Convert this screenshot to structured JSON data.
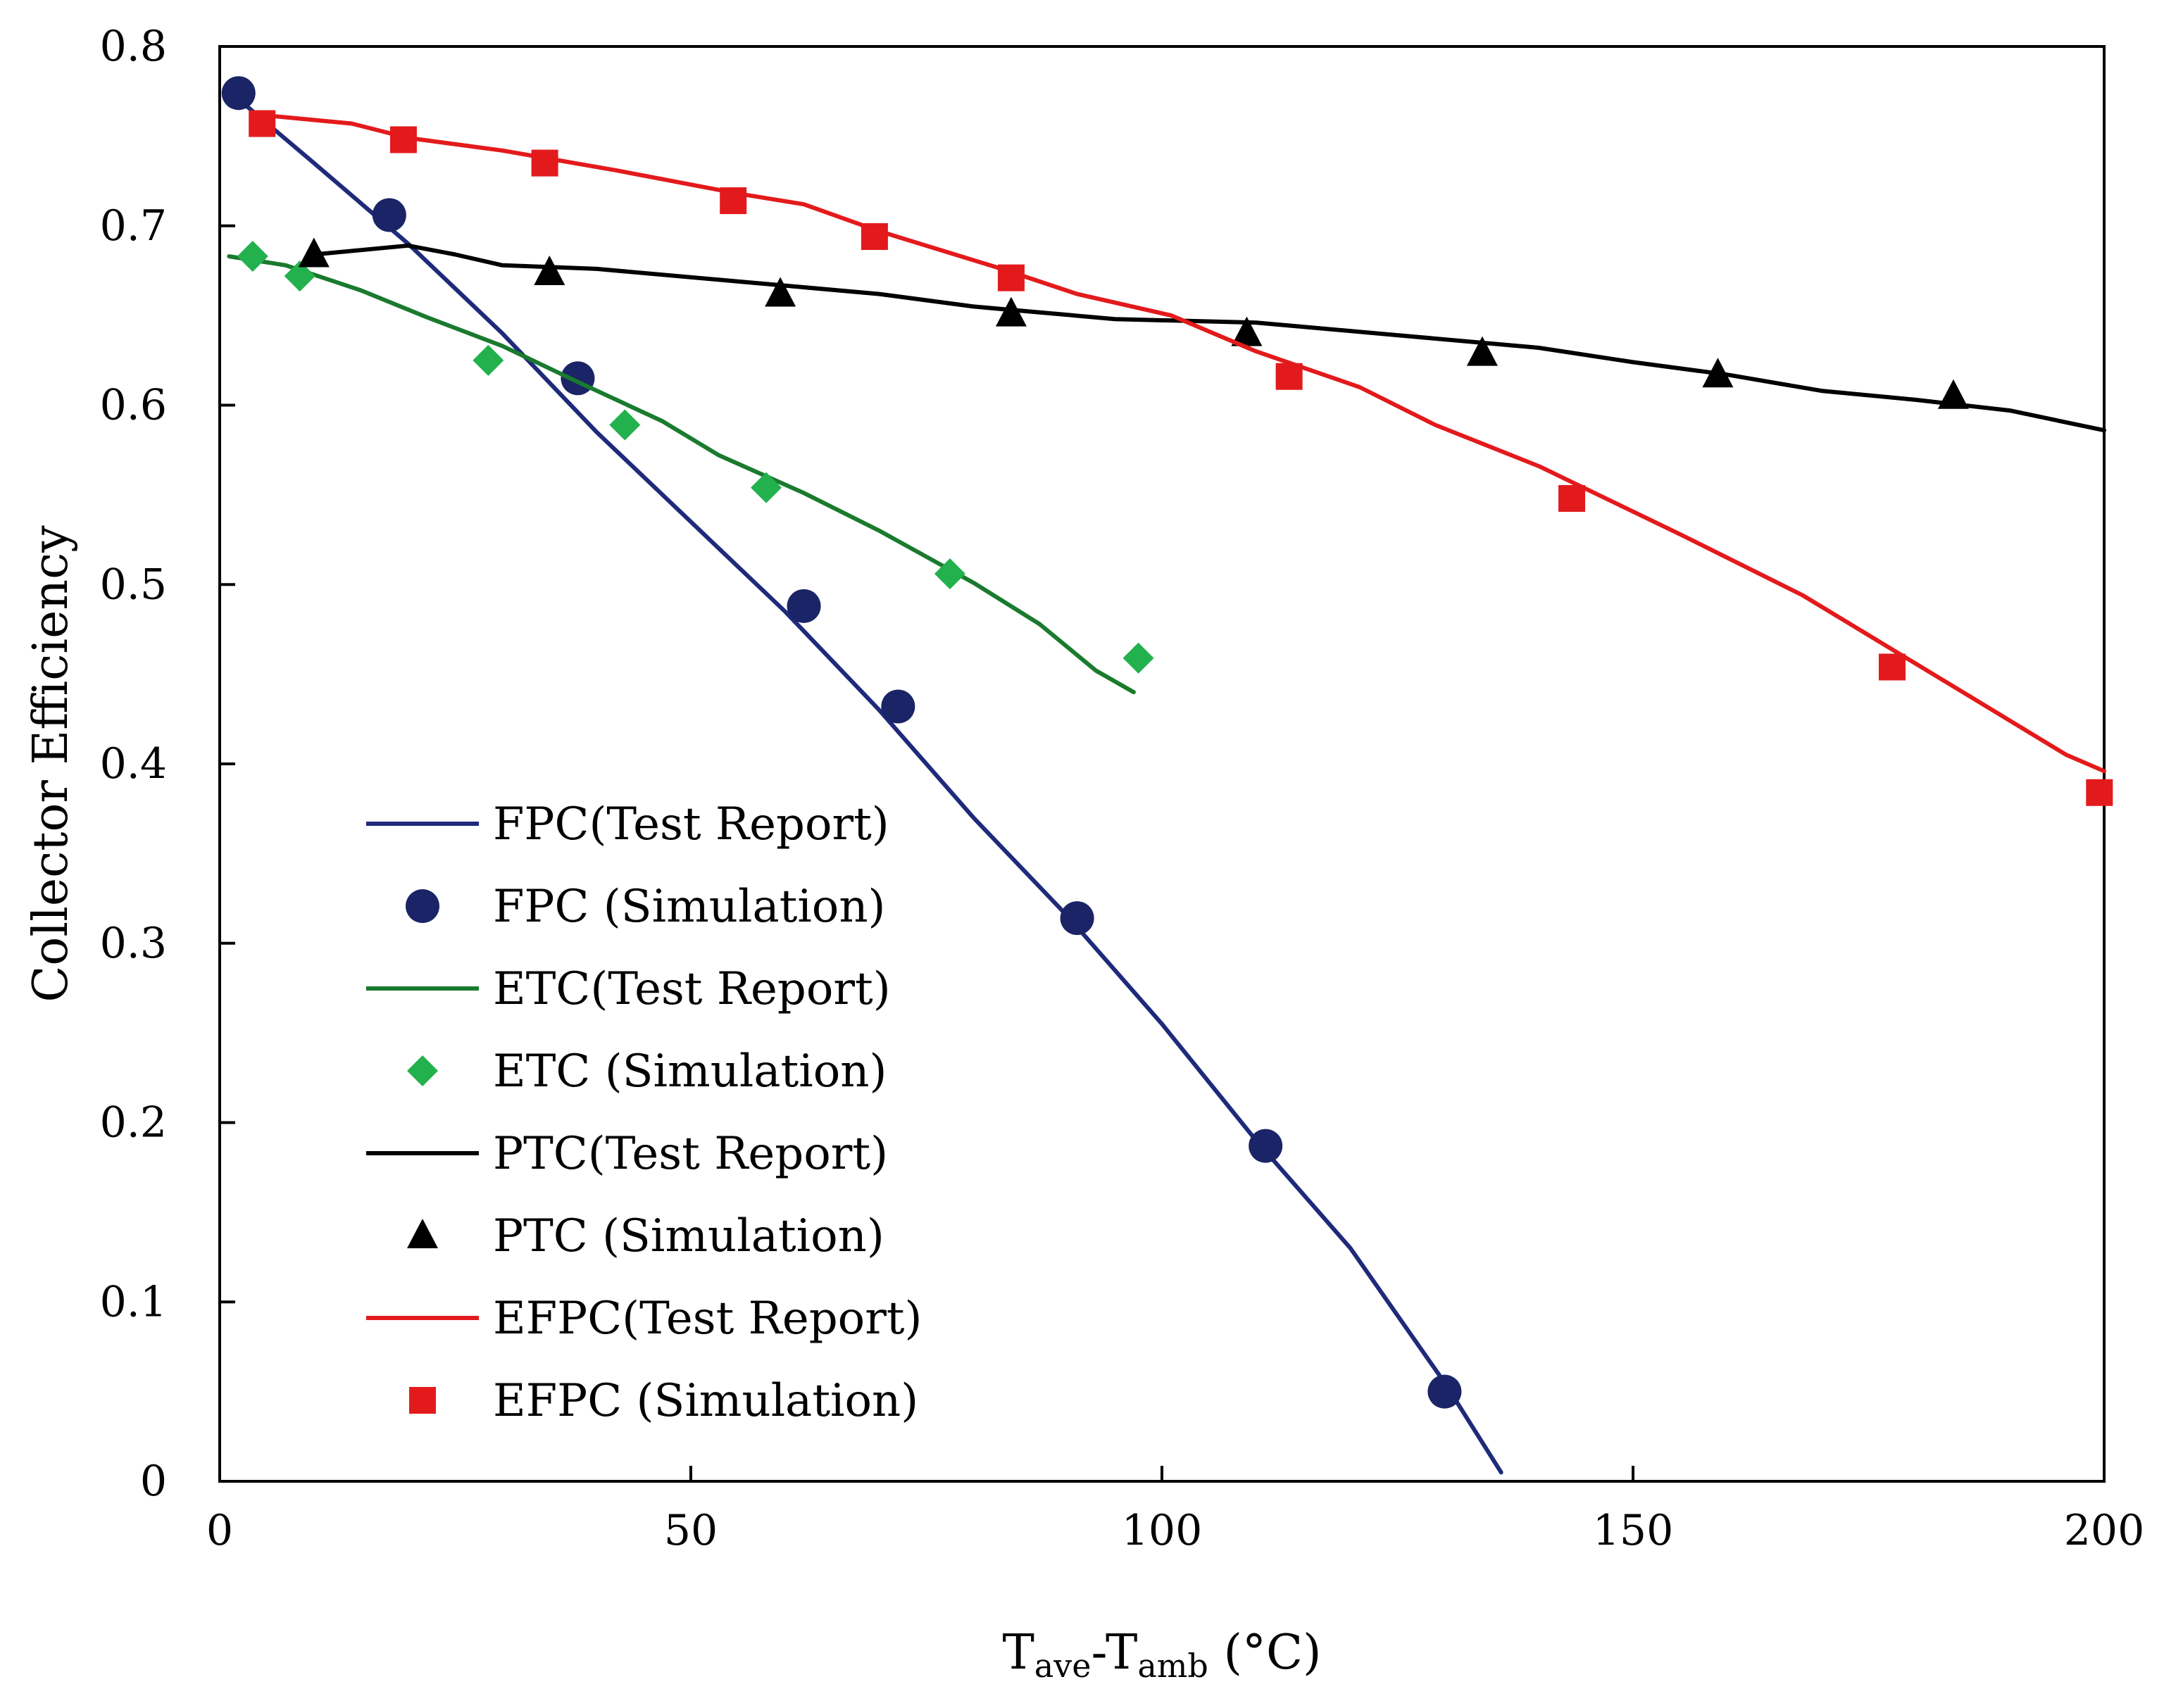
{
  "chart_data": {
    "type": "line",
    "title": "",
    "xlabel": {
      "main": "T",
      "sub1": "ave",
      "mid": "-T",
      "sub2": "amb",
      "unit": " (°C)"
    },
    "ylabel": "Collector Efficiency",
    "xlim": [
      0,
      200
    ],
    "ylim": [
      0,
      0.8
    ],
    "x_ticks": [
      0,
      50,
      100,
      150,
      200
    ],
    "x_tick_labels": [
      "0",
      "50",
      "100",
      "150",
      "200"
    ],
    "y_ticks": [
      0,
      0.1,
      0.2,
      0.3,
      0.4,
      0.5,
      0.6,
      0.7,
      0.8
    ],
    "y_tick_labels": [
      "0",
      "0.1",
      "0.2",
      "0.3",
      "0.4",
      "0.5",
      "0.6",
      "0.7",
      "0.8"
    ],
    "grid": false,
    "legend_position": "bottom-left",
    "series": [
      {
        "name": "FPC(Test Report)",
        "kind": "line",
        "color": "#1f2a7a",
        "x": [
          1,
          10,
          20,
          30,
          40,
          50,
          60,
          70,
          80,
          90,
          100,
          110,
          120,
          130,
          136
        ],
        "y": [
          0.775,
          0.735,
          0.69,
          0.64,
          0.585,
          0.535,
          0.485,
          0.43,
          0.37,
          0.315,
          0.255,
          0.19,
          0.13,
          0.055,
          0.005
        ]
      },
      {
        "name": "FPC (Simulation)",
        "kind": "marker",
        "marker": "circle",
        "color": "#1a2466",
        "x": [
          2,
          18,
          38,
          62,
          72,
          91,
          111,
          130
        ],
        "y": [
          0.774,
          0.706,
          0.615,
          0.488,
          0.432,
          0.314,
          0.187,
          0.05
        ]
      },
      {
        "name": "ETC(Test Report)",
        "kind": "line",
        "color": "#1a7a2e",
        "x": [
          1,
          7,
          15,
          22,
          30,
          38,
          47,
          53,
          62,
          70,
          80,
          87,
          93,
          97
        ],
        "y": [
          0.683,
          0.678,
          0.664,
          0.649,
          0.633,
          0.613,
          0.591,
          0.572,
          0.551,
          0.53,
          0.501,
          0.478,
          0.452,
          0.44
        ]
      },
      {
        "name": "ETC (Simulation)",
        "kind": "marker",
        "marker": "diamond",
        "color": "#22b14c",
        "x": [
          3.5,
          8.5,
          28.5,
          43,
          58,
          77.5,
          97.5
        ],
        "y": [
          0.683,
          0.672,
          0.625,
          0.589,
          0.554,
          0.506,
          0.459
        ]
      },
      {
        "name": "PTC(Test Report)",
        "kind": "line",
        "color": "#000000",
        "x": [
          10,
          20,
          25,
          30,
          35,
          40,
          55,
          70,
          80,
          95,
          110,
          125,
          140,
          150,
          160,
          170,
          180,
          190,
          200
        ],
        "y": [
          0.684,
          0.689,
          0.684,
          0.678,
          0.677,
          0.676,
          0.669,
          0.662,
          0.655,
          0.648,
          0.646,
          0.639,
          0.632,
          0.624,
          0.617,
          0.608,
          0.603,
          0.597,
          0.586
        ]
      },
      {
        "name": "PTC (Simulation)",
        "kind": "marker",
        "marker": "triangle",
        "color": "#000000",
        "x": [
          10,
          35,
          59.5,
          84,
          109,
          134,
          159,
          184
        ],
        "y": [
          0.684,
          0.674,
          0.662,
          0.651,
          0.64,
          0.629,
          0.617,
          0.605
        ]
      },
      {
        "name": "EFPC(Test Report)",
        "kind": "line",
        "color": "#e31a1c",
        "x": [
          4,
          14,
          20,
          30,
          42,
          55,
          62,
          70,
          83,
          91,
          101,
          110,
          121,
          129,
          140,
          155,
          168,
          185,
          196,
          200
        ],
        "y": [
          0.762,
          0.757,
          0.749,
          0.742,
          0.731,
          0.718,
          0.712,
          0.697,
          0.676,
          0.662,
          0.65,
          0.63,
          0.61,
          0.589,
          0.566,
          0.528,
          0.494,
          0.44,
          0.405,
          0.396
        ]
      },
      {
        "name": "EFPC (Simulation)",
        "kind": "marker",
        "marker": "square",
        "color": "#e31a1c",
        "x": [
          4.5,
          19.5,
          34.5,
          54.5,
          69.5,
          84,
          113.5,
          143.5,
          177.5,
          199.5
        ],
        "y": [
          0.757,
          0.748,
          0.735,
          0.714,
          0.694,
          0.671,
          0.616,
          0.548,
          0.454,
          0.384
        ]
      }
    ]
  }
}
